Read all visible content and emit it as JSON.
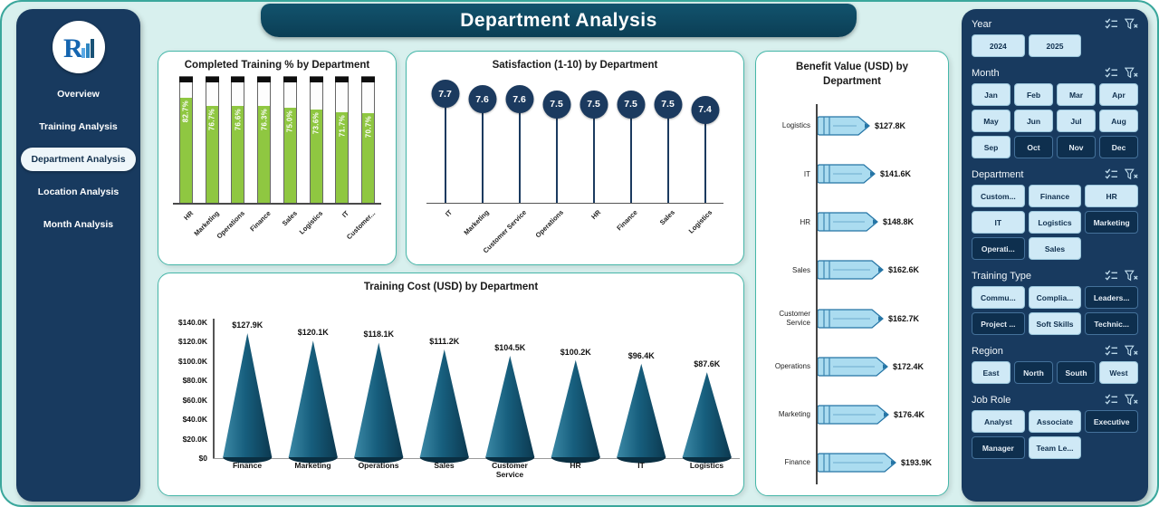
{
  "page": {
    "title": "Department Analysis",
    "background": "#d8f0ee",
    "accent": "#3aa79c",
    "navy": "#183a5f"
  },
  "sidebar": {
    "logo_letter": "R",
    "items": [
      {
        "label": "Overview",
        "active": false
      },
      {
        "label": "Training Analysis",
        "active": false
      },
      {
        "label": "Department Analysis",
        "active": true
      },
      {
        "label": "Location Analysis",
        "active": false
      },
      {
        "label": "Month Analysis",
        "active": false
      }
    ]
  },
  "chart_data": [
    {
      "type": "bar",
      "title": "Completed Training % by Department",
      "categories": [
        "HR",
        "Marketing",
        "Operations",
        "Finance",
        "Sales",
        "Logistics",
        "IT",
        "Customer..."
      ],
      "values": [
        82.7,
        76.7,
        76.6,
        76.3,
        75.0,
        73.6,
        71.7,
        70.7
      ],
      "value_labels": [
        "82.7%",
        "76.7%",
        "76.6%",
        "76.3%",
        "75.0%",
        "73.6%",
        "71.7%",
        "70.7%"
      ],
      "ylim": [
        0,
        100
      ],
      "bar_color": "#8fc741"
    },
    {
      "type": "lollipop",
      "title": "Satisfaction (1-10) by Department",
      "categories": [
        "IT",
        "Marketing",
        "Customer Service",
        "Operations",
        "HR",
        "Finance",
        "Sales",
        "Logistics"
      ],
      "values": [
        7.7,
        7.6,
        7.6,
        7.5,
        7.5,
        7.5,
        7.5,
        7.4
      ],
      "marker_color": "#1b3a5f"
    },
    {
      "type": "bar-horizontal",
      "title": "Benefit Value (USD) by Department",
      "categories": [
        "Logistics",
        "IT",
        "HR",
        "Sales",
        "Customer Service",
        "Operations",
        "Marketing",
        "Finance"
      ],
      "values": [
        127.8,
        141.6,
        148.8,
        162.6,
        162.7,
        172.4,
        176.4,
        193.9
      ],
      "value_labels": [
        "$127.8K",
        "$141.6K",
        "$148.8K",
        "$162.6K",
        "$162.7K",
        "$172.4K",
        "$176.4K",
        "$193.9K"
      ],
      "bar_color": "#abdcf0"
    },
    {
      "type": "cone",
      "title": "Training Cost (USD) by Department",
      "categories": [
        "Finance",
        "Marketing",
        "Operations",
        "Sales",
        "Customer Service",
        "HR",
        "IT",
        "Logistics"
      ],
      "values": [
        127.9,
        120.1,
        118.1,
        111.2,
        104.5,
        100.2,
        96.4,
        87.6
      ],
      "value_labels": [
        "$127.9K",
        "$120.1K",
        "$118.1K",
        "$111.2K",
        "$104.5K",
        "$100.2K",
        "$96.4K",
        "$87.6K"
      ],
      "yticks": [
        "$0",
        "$20.0K",
        "$40.0K",
        "$60.0K",
        "$80.0K",
        "$100.0K",
        "$120.0K",
        "$140.0K"
      ],
      "ylim": [
        0,
        140
      ],
      "cone_color": "#15536e"
    }
  ],
  "slicers": [
    {
      "title": "Year",
      "cols": 3,
      "items": [
        {
          "label": "2024",
          "dark": false
        },
        {
          "label": "2025",
          "dark": false
        }
      ]
    },
    {
      "title": "Month",
      "cols": 4,
      "items": [
        {
          "label": "Jan",
          "dark": false
        },
        {
          "label": "Feb",
          "dark": false
        },
        {
          "label": "Mar",
          "dark": false
        },
        {
          "label": "Apr",
          "dark": false
        },
        {
          "label": "May",
          "dark": false
        },
        {
          "label": "Jun",
          "dark": false
        },
        {
          "label": "Jul",
          "dark": false
        },
        {
          "label": "Aug",
          "dark": false
        },
        {
          "label": "Sep",
          "dark": false
        },
        {
          "label": "Oct",
          "dark": true
        },
        {
          "label": "Nov",
          "dark": true
        },
        {
          "label": "Dec",
          "dark": true
        }
      ]
    },
    {
      "title": "Department",
      "cols": 3,
      "items": [
        {
          "label": "Custom...",
          "dark": false
        },
        {
          "label": "Finance",
          "dark": false
        },
        {
          "label": "HR",
          "dark": false
        },
        {
          "label": "IT",
          "dark": false
        },
        {
          "label": "Logistics",
          "dark": false
        },
        {
          "label": "Marketing",
          "dark": true
        },
        {
          "label": "Operati...",
          "dark": true
        },
        {
          "label": "Sales",
          "dark": false
        }
      ]
    },
    {
      "title": "Training Type",
      "cols": 3,
      "items": [
        {
          "label": "Commu...",
          "dark": false
        },
        {
          "label": "Complia...",
          "dark": false
        },
        {
          "label": "Leaders...",
          "dark": true
        },
        {
          "label": "Project ...",
          "dark": true
        },
        {
          "label": "Soft Skills",
          "dark": false
        },
        {
          "label": "Technic...",
          "dark": true
        }
      ]
    },
    {
      "title": "Region",
      "cols": 4,
      "items": [
        {
          "label": "East",
          "dark": false
        },
        {
          "label": "North",
          "dark": true
        },
        {
          "label": "South",
          "dark": true
        },
        {
          "label": "West",
          "dark": false
        }
      ]
    },
    {
      "title": "Job Role",
      "cols": 3,
      "items": [
        {
          "label": "Analyst",
          "dark": false
        },
        {
          "label": "Associate",
          "dark": false
        },
        {
          "label": "Executive",
          "dark": true
        },
        {
          "label": "Manager",
          "dark": true
        },
        {
          "label": "Team Le...",
          "dark": false
        }
      ]
    }
  ]
}
